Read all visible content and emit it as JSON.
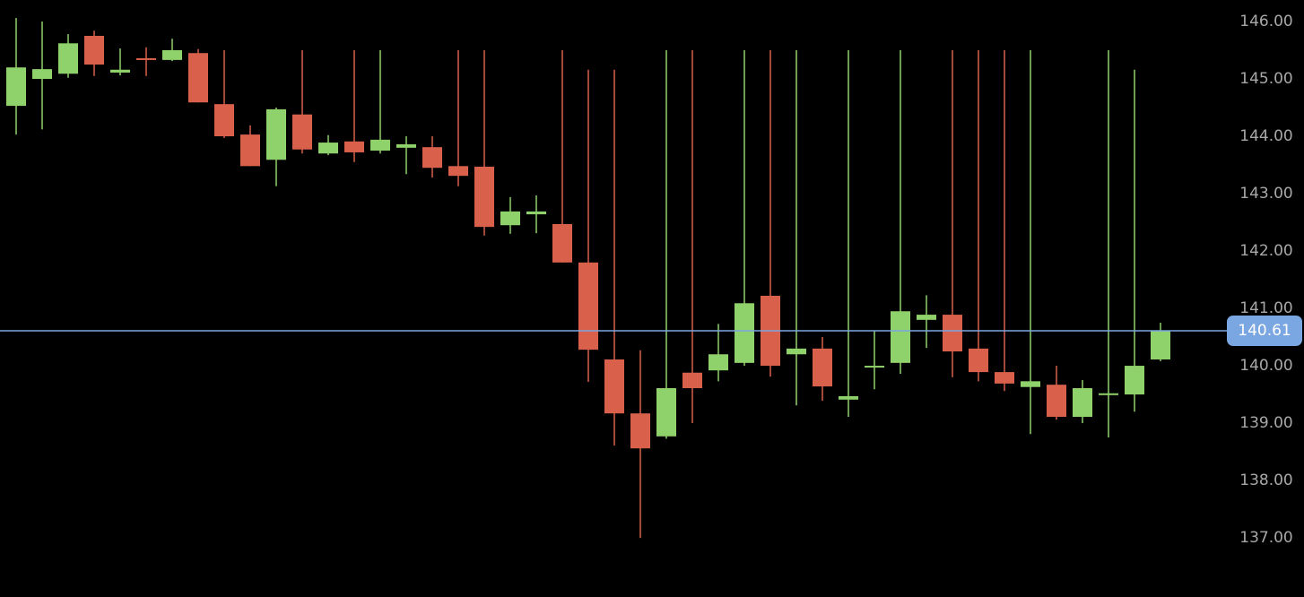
{
  "chart_data": {
    "type": "candlestick",
    "open": [
      144.53,
      145.0,
      145.09,
      145.75,
      145.11,
      145.36,
      145.33,
      145.45,
      144.56,
      144.03,
      143.59,
      144.38,
      143.7,
      143.91,
      143.75,
      143.8,
      143.81,
      143.48,
      143.47,
      142.45,
      142.64,
      142.47,
      141.8,
      140.11,
      139.17,
      138.77,
      139.88,
      139.92,
      140.05,
      141.22,
      140.2,
      140.3,
      139.41,
      139.97,
      140.05,
      140.8,
      140.89,
      140.3,
      139.89,
      139.63,
      139.67,
      139.11,
      139.5,
      139.5,
      140.11
    ],
    "high": [
      146.06,
      146.0,
      145.78,
      145.84,
      145.53,
      145.55,
      145.7,
      145.52,
      145.5,
      144.19,
      144.5,
      145.5,
      144.02,
      145.5,
      145.5,
      144.0,
      144.0,
      145.5,
      145.5,
      142.94,
      142.97,
      145.5,
      145.16,
      145.16,
      140.27,
      145.5,
      145.5,
      140.73,
      145.5,
      145.5,
      145.5,
      140.5,
      145.5,
      140.61,
      145.5,
      141.23,
      145.5,
      145.5,
      145.5,
      145.5,
      140.0,
      139.75,
      145.5,
      145.16,
      140.75
    ],
    "low": [
      144.03,
      144.12,
      145.02,
      145.05,
      145.06,
      145.05,
      145.31,
      144.59,
      143.97,
      143.48,
      143.13,
      143.7,
      143.67,
      143.55,
      143.7,
      143.34,
      143.28,
      143.13,
      142.27,
      142.3,
      142.31,
      141.8,
      139.72,
      138.61,
      137.0,
      138.73,
      139.0,
      139.73,
      140.0,
      139.81,
      139.31,
      139.39,
      139.11,
      139.59,
      139.86,
      140.31,
      139.8,
      139.73,
      139.56,
      138.81,
      139.06,
      139.0,
      138.75,
      139.2,
      140.08
    ],
    "close": [
      145.2,
      145.17,
      145.62,
      145.25,
      145.16,
      145.33,
      145.5,
      144.59,
      144.0,
      143.48,
      144.47,
      143.77,
      143.89,
      143.72,
      143.94,
      143.86,
      143.45,
      143.31,
      142.42,
      142.69,
      142.69,
      141.8,
      140.28,
      139.17,
      138.56,
      139.61,
      139.61,
      140.2,
      141.09,
      140.0,
      140.3,
      139.64,
      139.47,
      140.0,
      140.95,
      140.89,
      140.25,
      139.89,
      139.69,
      139.73,
      139.11,
      139.61,
      139.52,
      140.0,
      140.61
    ],
    "up_color": "#8fd16a",
    "down_color": "#d9614c",
    "ylim": [
      135.97,
      146.375
    ],
    "yticks": [
      {
        "value": 146,
        "label": "146.00"
      },
      {
        "value": 145,
        "label": "145.00"
      },
      {
        "value": 144,
        "label": "144.00"
      },
      {
        "value": 143,
        "label": "143.00"
      },
      {
        "value": 142,
        "label": "142.00"
      },
      {
        "value": 141,
        "label": "141.00"
      },
      {
        "value": 140,
        "label": "140.00"
      },
      {
        "value": 139,
        "label": "139.00"
      },
      {
        "value": 138,
        "label": "138.00"
      },
      {
        "value": 137,
        "label": "137.00"
      }
    ],
    "last_price": 140.61,
    "last_price_color": "#7aa6e2"
  }
}
